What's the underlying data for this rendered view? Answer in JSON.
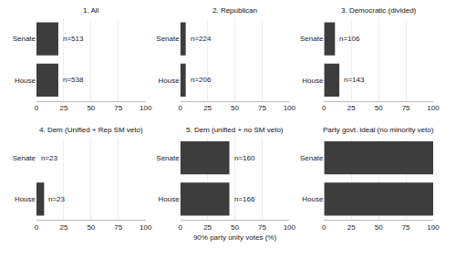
{
  "chart_data": [
    {
      "type": "bar",
      "orientation": "horizontal",
      "title": "1. All",
      "categories": [
        "Senate",
        "House"
      ],
      "values": [
        20,
        20
      ],
      "color": "#3d3d3d",
      "xlim": [
        0,
        100
      ],
      "xticks": [
        0,
        25,
        50,
        75,
        100
      ],
      "grid": true,
      "annotations": [
        {
          "category": "Senate",
          "text": "n=513"
        },
        {
          "category": "House",
          "text": "n=538"
        }
      ]
    },
    {
      "type": "bar",
      "orientation": "horizontal",
      "title": "2. Republican",
      "categories": [
        "Senate",
        "House"
      ],
      "values": [
        5,
        5
      ],
      "color": "#3d3d3d",
      "xlim": [
        0,
        100
      ],
      "xticks": [
        0,
        25,
        50,
        75,
        100
      ],
      "grid": true,
      "annotations": [
        {
          "category": "Senate",
          "text": "n=224"
        },
        {
          "category": "House",
          "text": "n=206"
        }
      ]
    },
    {
      "type": "bar",
      "orientation": "horizontal",
      "title": "3. Democratic (divided)",
      "categories": [
        "Senate",
        "House"
      ],
      "values": [
        10,
        14
      ],
      "color": "#3d3d3d",
      "xlim": [
        0,
        100
      ],
      "xticks": [
        0,
        25,
        50,
        75,
        100
      ],
      "grid": true,
      "annotations": [
        {
          "category": "Senate",
          "text": "n=106"
        },
        {
          "category": "House",
          "text": "n=143"
        }
      ]
    },
    {
      "type": "bar",
      "orientation": "horizontal",
      "title": "4. Dem (Unified + Rep SM veto)",
      "categories": [
        "Senate",
        "House"
      ],
      "values": [
        0,
        7
      ],
      "color": "#3d3d3d",
      "xlim": [
        0,
        100
      ],
      "xticks": [
        0,
        25,
        50,
        75,
        100
      ],
      "grid": true,
      "annotations": [
        {
          "category": "Senate",
          "text": "n=23"
        },
        {
          "category": "House",
          "text": "n=23"
        }
      ]
    },
    {
      "type": "bar",
      "orientation": "horizontal",
      "title": "5. Dem (unified + no SM veto)",
      "categories": [
        "Senate",
        "House"
      ],
      "values": [
        45,
        45
      ],
      "color": "#3d3d3d",
      "xlim": [
        0,
        100
      ],
      "xticks": [
        0,
        25,
        50,
        75,
        100
      ],
      "grid": true,
      "xlabel": "90% party unity votes (%)",
      "annotations": [
        {
          "category": "Senate",
          "text": "n=160"
        },
        {
          "category": "House",
          "text": "n=166"
        }
      ]
    },
    {
      "type": "bar",
      "orientation": "horizontal",
      "title": "Party govt. ideal (no minority veto)",
      "categories": [
        "Senate",
        "House"
      ],
      "values": [
        100,
        100
      ],
      "color": "#3d3d3d",
      "xlim": [
        0,
        100
      ],
      "xticks": [
        0,
        25,
        50,
        75,
        100
      ],
      "grid": true
    }
  ]
}
